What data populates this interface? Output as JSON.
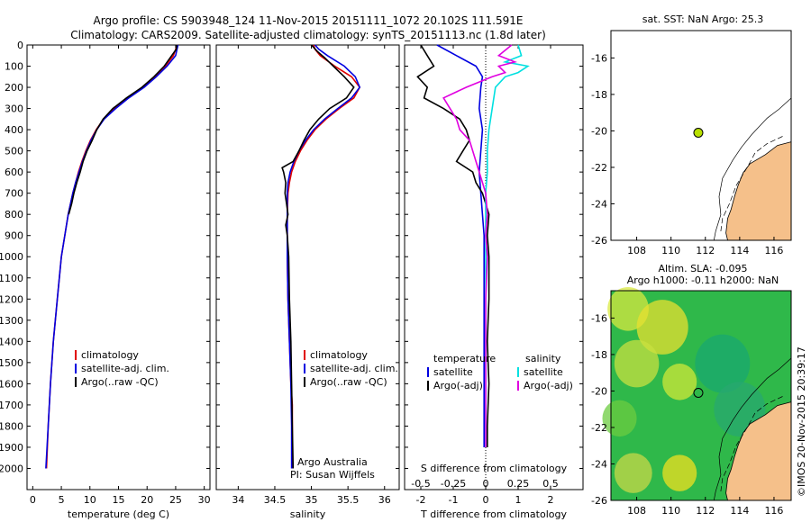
{
  "header": {
    "line1": "Argo profile: CS 5903948_124 11-Nov-2015 20151111_1072 20.102S 111.591E",
    "line2": "Climatology: CARS2009. Satellite-adjusted climatology: synTS_20151113.nc (1.8d later)"
  },
  "colors": {
    "climatology": "#e00000",
    "satellite": "#0000e0",
    "argo": "#000000",
    "salinity_satellite": "#00e0e0",
    "salinity_argo": "#e000e0",
    "land": "#f5c08a",
    "sst_marker": "#b8e000"
  },
  "credits": {
    "org": "Argo Australia",
    "pi": "PI: Susan Wijffels",
    "imos": "©IMOS 20-Nov-2015 20:39:17"
  },
  "maps": {
    "sst_title": "sat. SST: NaN Argo: 25.3",
    "sla_title1": "Altim. SLA: -0.095",
    "sla_title2": "Argo h1000: -0.11 h2000: NaN",
    "lon_ticks": [
      "108",
      "110",
      "112",
      "114",
      "116"
    ],
    "lat_ticks": [
      "-16",
      "-18",
      "-20",
      "-22",
      "-24",
      "-26"
    ],
    "lon_range": [
      106.5,
      117
    ],
    "lat_range": [
      -26,
      -14.5
    ],
    "argo_lon": 111.591,
    "argo_lat": -20.102
  },
  "chart_data": [
    {
      "type": "line",
      "xlabel": "temperature (deg C)",
      "ylabel": "",
      "xlim": [
        -1,
        31
      ],
      "ylim": [
        2100,
        0
      ],
      "xticks": [
        "0",
        "5",
        "10",
        "15",
        "20",
        "25",
        "30"
      ],
      "xtick_values": [
        0,
        5,
        10,
        15,
        20,
        25,
        30
      ],
      "yticks": [
        "0",
        "100",
        "200",
        "300",
        "400",
        "500",
        "600",
        "700",
        "800",
        "900",
        "1000",
        "1100",
        "1200",
        "1300",
        "1400",
        "1500",
        "1600",
        "1700",
        "1800",
        "1900",
        "2000"
      ],
      "legend": [
        "climatology",
        "satellite-adj. clim.",
        "Argo(..raw -QC)"
      ],
      "series": [
        {
          "name": "climatology",
          "y": [
            0,
            50,
            100,
            150,
            200,
            250,
            300,
            350,
            400,
            450,
            500,
            550,
            600,
            650,
            700,
            800,
            900,
            1000,
            1200,
            1400,
            1600,
            1800,
            2000
          ],
          "x": [
            25.3,
            24.6,
            23.2,
            21.4,
            19.3,
            16.6,
            14.3,
            12.4,
            11.1,
            10.1,
            9.3,
            8.6,
            8.0,
            7.5,
            7.0,
            6.2,
            5.6,
            5.0,
            4.3,
            3.6,
            3.1,
            2.7,
            2.4
          ]
        },
        {
          "name": "satellite-adj. clim.",
          "y": [
            0,
            50,
            100,
            150,
            200,
            250,
            300,
            350,
            400,
            450,
            500,
            550,
            600,
            650,
            700,
            800,
            900,
            1000,
            1200,
            1400,
            1600,
            1800,
            2000
          ],
          "x": [
            25.4,
            25.0,
            23.5,
            21.6,
            19.5,
            16.8,
            14.5,
            12.5,
            11.2,
            10.2,
            9.4,
            8.7,
            8.1,
            7.5,
            7.0,
            6.2,
            5.6,
            5.0,
            4.3,
            3.6,
            3.1,
            2.7,
            2.3
          ]
        },
        {
          "name": "Argo(..raw -QC)",
          "y": [
            0,
            20,
            50,
            100,
            150,
            200,
            250,
            300,
            350,
            400,
            450,
            500,
            550,
            600,
            650,
            700,
            750,
            800
          ],
          "x": [
            25.2,
            25.1,
            24.3,
            23.0,
            21.2,
            19.1,
            16.4,
            14.0,
            12.3,
            11.2,
            10.4,
            9.5,
            8.8,
            8.3,
            7.7,
            7.2,
            6.8,
            6.3
          ]
        }
      ]
    },
    {
      "type": "line",
      "xlabel": "salinity",
      "ylabel": "",
      "xlim": [
        33.7,
        36.2
      ],
      "ylim": [
        2100,
        0
      ],
      "xticks": [
        "34",
        "34.5",
        "35",
        "35.5",
        "36"
      ],
      "xtick_values": [
        34,
        34.5,
        35,
        35.5,
        36
      ],
      "legend": [
        "climatology",
        "satellite-adj. clim.",
        "Argo(..raw -QC)"
      ],
      "series": [
        {
          "name": "climatology",
          "y": [
            0,
            20,
            50,
            100,
            150,
            200,
            250,
            300,
            350,
            400,
            450,
            500,
            550,
            600,
            650,
            700,
            800,
            900,
            1000,
            1200,
            1400,
            1600,
            1700,
            2000
          ],
          "x": [
            35.03,
            35.05,
            35.12,
            35.32,
            35.55,
            35.66,
            35.58,
            35.38,
            35.2,
            35.05,
            34.94,
            34.85,
            34.78,
            34.73,
            34.7,
            34.68,
            34.67,
            34.67,
            34.67,
            34.68,
            34.7,
            34.72,
            34.74,
            34.74
          ]
        },
        {
          "name": "satellite-adj. clim.",
          "y": [
            0,
            20,
            50,
            100,
            150,
            200,
            250,
            300,
            350,
            400,
            450,
            500,
            550,
            600,
            650,
            700,
            800,
            900,
            1000,
            1200,
            1400,
            1600,
            1800,
            2000
          ],
          "x": [
            35.05,
            35.1,
            35.22,
            35.45,
            35.6,
            35.66,
            35.55,
            35.36,
            35.18,
            35.03,
            34.92,
            34.83,
            34.76,
            34.71,
            34.68,
            34.67,
            34.67,
            34.67,
            34.67,
            34.68,
            34.7,
            34.72,
            34.73,
            34.73
          ]
        },
        {
          "name": "Argo(..raw -QC)",
          "y": [
            0,
            30,
            60,
            100,
            150,
            200,
            250,
            300,
            350,
            400,
            450,
            500,
            550,
            580,
            600,
            650,
            700,
            750,
            800,
            850,
            900,
            1000,
            1200,
            1400,
            1600,
            1800,
            2000
          ],
          "x": [
            35.0,
            35.08,
            35.18,
            35.3,
            35.45,
            35.58,
            35.48,
            35.25,
            35.1,
            34.98,
            34.9,
            34.83,
            34.75,
            34.6,
            34.62,
            34.65,
            34.64,
            34.66,
            34.68,
            34.65,
            34.67,
            34.69,
            34.7,
            34.72,
            34.73,
            34.74,
            34.75
          ]
        }
      ]
    },
    {
      "type": "line",
      "xlabel": "T difference from climatology",
      "xlabel2": "S difference from climatology",
      "xlim": [
        -2.5,
        3
      ],
      "ylim": [
        2100,
        0
      ],
      "xticks": [
        "-2",
        "-1",
        "0",
        "1",
        "2"
      ],
      "xtick_values": [
        -2,
        -1,
        0,
        1,
        2
      ],
      "sticks": [
        "-0.5",
        "-0.25",
        "0",
        "0.25",
        "0.5"
      ],
      "stick_values": [
        -2,
        -1,
        0,
        1,
        2
      ],
      "legend_titles": [
        "temperature",
        "salinity"
      ],
      "legend": [
        "satellite",
        "Argo(-adj)",
        "satellite",
        "Argo(-adj)"
      ],
      "series": [
        {
          "name": "satellite",
          "y": [
            0,
            50,
            100,
            150,
            200,
            300,
            400,
            500,
            600,
            700,
            800,
            900,
            1000,
            1200,
            1400,
            1600,
            1800,
            1900
          ],
          "x": [
            -1.5,
            -0.9,
            -0.3,
            -0.1,
            -0.15,
            -0.2,
            -0.1,
            -0.15,
            -0.2,
            -0.15,
            -0.1,
            -0.05,
            -0.05,
            -0.05,
            -0.05,
            -0.05,
            -0.05,
            -0.05
          ]
        },
        {
          "name": "Argo(-adj)",
          "y": [
            0,
            50,
            100,
            150,
            200,
            250,
            300,
            350,
            400,
            450,
            500,
            550,
            600,
            650,
            700,
            750,
            800,
            900,
            1000,
            1200,
            1400,
            1600,
            1800,
            1900
          ],
          "x": [
            -2.0,
            -1.8,
            -1.6,
            -2.1,
            -1.8,
            -1.9,
            -1.3,
            -0.8,
            -0.6,
            -0.5,
            -0.7,
            -0.9,
            -0.4,
            -0.3,
            -0.1,
            0.0,
            0.1,
            0.05,
            0.1,
            0.1,
            0.05,
            0.1,
            0.05,
            0.05
          ]
        },
        {
          "name": "satellite",
          "y": [
            0,
            50,
            80,
            100,
            130,
            150,
            200,
            300,
            400,
            500,
            600,
            700,
            800,
            900,
            1000,
            1200,
            1400,
            1600,
            1800,
            1900
          ],
          "x": [
            1.0,
            1.1,
            0.6,
            1.3,
            1.0,
            0.6,
            0.3,
            0.2,
            0.1,
            0.05,
            0.05,
            0.0,
            0.0,
            0.0,
            0.0,
            0.0,
            0.0,
            0.0,
            0.0,
            0.0
          ]
        },
        {
          "name": "Argo(-adj)",
          "y": [
            0,
            50,
            80,
            100,
            130,
            150,
            200,
            250,
            300,
            350,
            400,
            450,
            500,
            550,
            600,
            650,
            700,
            800,
            900,
            1000,
            1200,
            1400,
            1600,
            1800,
            1900
          ],
          "x": [
            0.8,
            0.4,
            0.9,
            0.4,
            0.6,
            0.2,
            -0.6,
            -1.3,
            -1.1,
            -0.9,
            -0.8,
            -0.5,
            -0.4,
            -0.3,
            -0.2,
            -0.1,
            0.0,
            0.05,
            0.0,
            0.05,
            0.0,
            0.0,
            0.0,
            0.0,
            0.0
          ]
        }
      ]
    }
  ]
}
